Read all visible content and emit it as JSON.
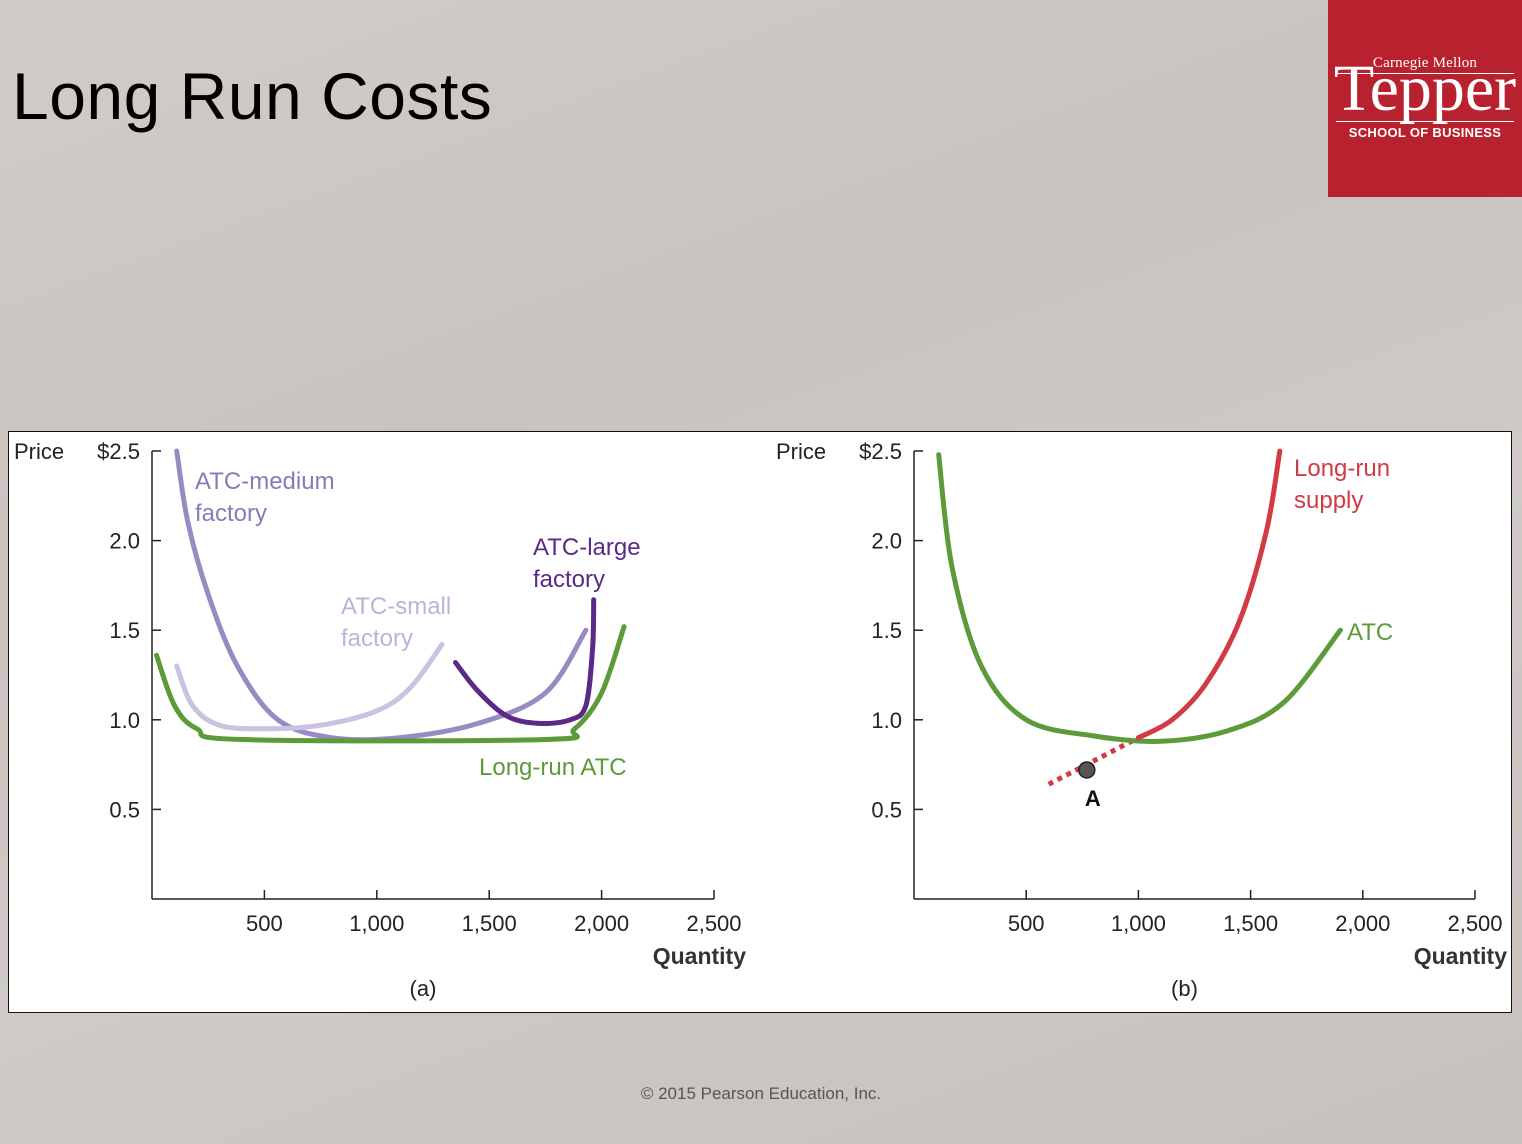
{
  "slide": {
    "title": "Long Run Costs",
    "copyright": "© 2015 Pearson Education, Inc."
  },
  "logo": {
    "top": "Carnegie Mellon",
    "main": "Tepper",
    "sub": "SCHOOL OF BUSINESS",
    "color": "#b8222e"
  },
  "colors": {
    "green": "#5c9a3a",
    "red": "#d23a44",
    "medium": "#9a8ac4",
    "small": "#cbc1e0",
    "large": "#5a2a86",
    "label_medium": "#8a7ab6",
    "label_small": "#bdb2da"
  },
  "chart_data": [
    {
      "type": "line",
      "caption": "(a)",
      "xlabel": "Quantity",
      "ylabel": "Price",
      "xlim": [
        0,
        2500
      ],
      "ylim": [
        0,
        2.5
      ],
      "x_ticks": [
        500,
        1000,
        1500,
        2000,
        2500
      ],
      "x_tick_labels": [
        "500",
        "1,000",
        "1,500",
        "2,000",
        "2,500"
      ],
      "y_ticks": [
        0.5,
        1.0,
        1.5,
        2.0,
        2.5
      ],
      "y_tick_labels": [
        "0.5",
        "1.0",
        "1.5",
        "2.0",
        "$2.5"
      ],
      "series": [
        {
          "name": "ATC-medium factory",
          "label_lines": [
            "ATC-medium",
            "factory"
          ],
          "color_key": "medium",
          "points": [
            [
              110,
              2.5
            ],
            [
              160,
              2.1
            ],
            [
              250,
              1.7
            ],
            [
              380,
              1.3
            ],
            [
              560,
              1.0
            ],
            [
              800,
              0.9
            ],
            [
              1100,
              0.9
            ],
            [
              1450,
              0.98
            ],
            [
              1750,
              1.15
            ],
            [
              1930,
              1.5
            ]
          ]
        },
        {
          "name": "ATC-small factory",
          "label_lines": [
            "ATC-small",
            "factory"
          ],
          "color_key": "small",
          "points": [
            [
              110,
              1.3
            ],
            [
              180,
              1.08
            ],
            [
              300,
              0.97
            ],
            [
              500,
              0.95
            ],
            [
              750,
              0.97
            ],
            [
              1000,
              1.05
            ],
            [
              1150,
              1.18
            ],
            [
              1290,
              1.42
            ]
          ]
        },
        {
          "name": "ATC-large factory",
          "label_lines": [
            "ATC-large",
            "factory"
          ],
          "color_key": "large",
          "points": [
            [
              1350,
              1.32
            ],
            [
              1450,
              1.16
            ],
            [
              1580,
              1.02
            ],
            [
              1720,
              0.98
            ],
            [
              1860,
              1.0
            ],
            [
              1930,
              1.08
            ],
            [
              1960,
              1.4
            ],
            [
              1965,
              1.67
            ]
          ]
        },
        {
          "name": "Long-run ATC",
          "label_lines": [
            "Long-run ATC"
          ],
          "color_key": "green",
          "points": [
            [
              20,
              1.36
            ],
            [
              100,
              1.08
            ],
            [
              200,
              0.95
            ],
            [
              400,
              0.89
            ],
            [
              1750,
              0.89
            ],
            [
              1880,
              0.95
            ],
            [
              2000,
              1.15
            ],
            [
              2100,
              1.52
            ]
          ]
        }
      ]
    },
    {
      "type": "line",
      "caption": "(b)",
      "xlabel": "Quantity",
      "ylabel": "Price",
      "xlim": [
        0,
        2500
      ],
      "ylim": [
        0,
        2.5
      ],
      "x_ticks": [
        500,
        1000,
        1500,
        2000,
        2500
      ],
      "x_tick_labels": [
        "500",
        "1,000",
        "1,500",
        "2,000",
        "2,500"
      ],
      "y_ticks": [
        0.5,
        1.0,
        1.5,
        2.0,
        2.5
      ],
      "y_tick_labels": [
        "0.5",
        "1.0",
        "1.5",
        "2.0",
        "$2.5"
      ],
      "series": [
        {
          "name": "ATC",
          "label_lines": [
            "ATC"
          ],
          "color_key": "green",
          "points": [
            [
              110,
              2.48
            ],
            [
              170,
              1.85
            ],
            [
              300,
              1.3
            ],
            [
              500,
              1.0
            ],
            [
              800,
              0.91
            ],
            [
              1100,
              0.88
            ],
            [
              1400,
              0.94
            ],
            [
              1650,
              1.1
            ],
            [
              1900,
              1.5
            ]
          ]
        },
        {
          "name": "Long-run supply",
          "label_lines": [
            "Long-run",
            "supply"
          ],
          "color_key": "red",
          "points": [
            [
              1000,
              0.9
            ],
            [
              1150,
              1.0
            ],
            [
              1300,
              1.2
            ],
            [
              1450,
              1.55
            ],
            [
              1570,
              2.05
            ],
            [
              1630,
              2.5
            ]
          ]
        }
      ],
      "dotted_extension": {
        "color_key": "red",
        "points": [
          [
            600,
            0.64
          ],
          [
            1000,
            0.9
          ]
        ]
      },
      "point": {
        "label": "A",
        "x": 770,
        "y": 0.72
      }
    }
  ]
}
